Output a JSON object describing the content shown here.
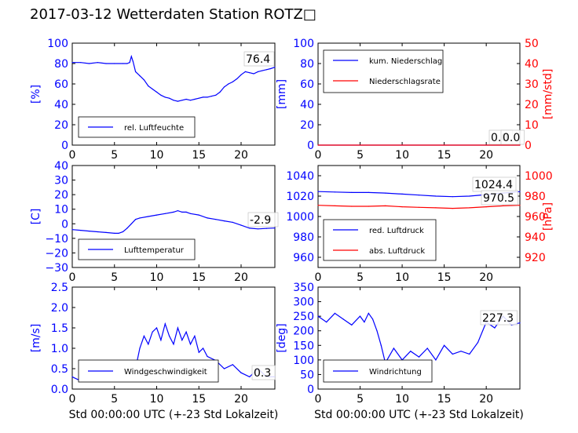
{
  "title": "2017-03-12 Wetterdaten Station ROTZ□",
  "xlabel": "Std 00:00:00 UTC (+-23 Std Lokalzeit)",
  "colors": {
    "blue": "#0000ff",
    "red": "#ff0000",
    "black": "#000000",
    "light_blue": "#8080ff"
  },
  "chart_data": [
    {
      "type": "line",
      "id": "humidity",
      "ylabel": "[%]",
      "xlim": [
        0,
        24
      ],
      "ylim": [
        0,
        100
      ],
      "xticks": [
        "0",
        "5",
        "10",
        "15",
        "20"
      ],
      "yticks": [
        "0",
        "20",
        "40",
        "60",
        "80",
        "100"
      ],
      "legend": [
        "rel. Luftfeuchte"
      ],
      "legend_position": "lower-left",
      "last_value_label": "76.4",
      "series": [
        {
          "name": "rel. Luftfeuchte",
          "color": "#0000ff",
          "x": [
            0,
            1,
            2,
            3,
            4,
            5,
            6,
            6.5,
            6.8,
            7,
            7.2,
            7.5,
            8,
            8.5,
            9,
            9.5,
            10,
            10.5,
            11,
            11.5,
            12,
            12.5,
            13,
            13.5,
            14,
            14.5,
            15,
            15.5,
            16,
            16.5,
            17,
            17.5,
            18,
            18.5,
            19,
            19.5,
            20,
            20.5,
            21,
            21.5,
            22,
            22.5,
            23,
            23.5,
            24
          ],
          "y": [
            81,
            81,
            80,
            81,
            80,
            80,
            80,
            80,
            81,
            87,
            82,
            72,
            68,
            64,
            58,
            55,
            52,
            49,
            47,
            46,
            44,
            43,
            44,
            45,
            44,
            45,
            46,
            47,
            47,
            48,
            49,
            52,
            57,
            60,
            62,
            65,
            69,
            72,
            71,
            70,
            72,
            73,
            74,
            75,
            76.4
          ]
        }
      ]
    },
    {
      "type": "line",
      "id": "precipitation",
      "ylabel": "[mm]",
      "y2label": "[mm/std]",
      "xlim": [
        0,
        24
      ],
      "ylim": [
        0,
        100
      ],
      "y2lim": [
        0,
        50
      ],
      "xticks": [
        "0",
        "5",
        "10",
        "15",
        "20"
      ],
      "yticks": [
        "0",
        "20",
        "40",
        "60",
        "80",
        "100"
      ],
      "y2ticks": [
        "0",
        "10",
        "20",
        "30",
        "40",
        "50"
      ],
      "legend": [
        "kum. Niederschlag",
        "Niederschlagsrate"
      ],
      "legend_position": "upper-left",
      "last_value_label": "0.0",
      "last_value_label2": "0.0",
      "series": [
        {
          "name": "kum. Niederschlag",
          "color": "#0000ff",
          "x": [
            0,
            24
          ],
          "y": [
            0,
            0
          ]
        },
        {
          "name": "Niederschlagsrate",
          "color": "#ff0000",
          "x": [
            0,
            24
          ],
          "y": [
            0,
            0
          ]
        }
      ]
    },
    {
      "type": "line",
      "id": "temperature",
      "ylabel": "[C]",
      "xlim": [
        0,
        24
      ],
      "ylim": [
        -30,
        40
      ],
      "xticks": [
        "0",
        "5",
        "10",
        "15",
        "20"
      ],
      "yticks": [
        "−30",
        "−20",
        "−10",
        "0",
        "10",
        "20",
        "30",
        "40"
      ],
      "legend": [
        "Lufttemperatur"
      ],
      "legend_position": "lower-left",
      "last_value_label": "-2.9",
      "series": [
        {
          "name": "Lufttemperatur",
          "color": "#0000ff",
          "x": [
            0,
            1,
            2,
            3,
            4,
            5,
            5.5,
            6,
            6.5,
            7,
            7.5,
            8,
            9,
            10,
            11,
            12,
            12.5,
            13,
            13.5,
            14,
            15,
            16,
            17,
            18,
            19,
            20,
            21,
            22,
            23,
            24
          ],
          "y": [
            -4,
            -4.5,
            -5,
            -5.5,
            -6,
            -6.5,
            -6.5,
            -5.5,
            -3,
            0,
            3,
            4,
            5,
            6,
            7,
            8,
            9,
            8,
            8,
            7,
            6,
            4,
            3,
            2,
            1,
            -1,
            -3,
            -3.5,
            -3.2,
            -2.9
          ]
        }
      ]
    },
    {
      "type": "line",
      "id": "pressure",
      "y2label": "[hPa]",
      "xlim": [
        0,
        24
      ],
      "ylim": [
        950,
        1050
      ],
      "y2lim": [
        910,
        1010
      ],
      "xticks": [
        "0",
        "5",
        "10",
        "15",
        "20"
      ],
      "yticks": [
        "960",
        "980",
        "1000",
        "1020",
        "1040"
      ],
      "y2ticks": [
        "920",
        "940",
        "960",
        "980",
        "1000"
      ],
      "legend": [
        "red. Luftdruck",
        "abs. Luftdruck"
      ],
      "legend_position": "lower-left",
      "last_value_label": "1024.4",
      "last_value_label2": "970.5",
      "series": [
        {
          "name": "red. Luftdruck",
          "color": "#0000ff",
          "axis": "left",
          "x": [
            0,
            2,
            4,
            6,
            8,
            10,
            12,
            14,
            16,
            18,
            20,
            22,
            24
          ],
          "y": [
            1024.5,
            1024,
            1023.5,
            1023.5,
            1023,
            1022,
            1021,
            1020,
            1019.5,
            1020,
            1021.5,
            1023,
            1024.4
          ]
        },
        {
          "name": "abs. Luftdruck",
          "color": "#ff0000",
          "axis": "left",
          "x": [
            0,
            2,
            4,
            6,
            8,
            10,
            12,
            14,
            16,
            18,
            20,
            22,
            24
          ],
          "y": [
            1011,
            1010.5,
            1010,
            1010,
            1010.5,
            1009.5,
            1009,
            1008.5,
            1008,
            1008.5,
            1009.5,
            1010.5,
            1011
          ]
        }
      ]
    },
    {
      "type": "line",
      "id": "windspeed",
      "ylabel": "[m/s]",
      "xlim": [
        0,
        24
      ],
      "ylim": [
        0,
        2.5
      ],
      "xticks": [
        "0",
        "5",
        "10",
        "15",
        "20"
      ],
      "yticks": [
        "0.0",
        "0.5",
        "1.0",
        "1.5",
        "2.0",
        "2.5"
      ],
      "legend": [
        "Windgeschwindigkeit"
      ],
      "legend_position": "lower-left",
      "last_value_label": "0.3",
      "series": [
        {
          "name": "Windgeschwindigkeit",
          "color": "#0000ff",
          "x": [
            0,
            1,
            2,
            3,
            4,
            5,
            6,
            7,
            7.5,
            8,
            8.5,
            9,
            9.5,
            10,
            10.5,
            11,
            11.5,
            12,
            12.5,
            13,
            13.5,
            14,
            14.5,
            15,
            15.5,
            16,
            17,
            18,
            19,
            20,
            21,
            22,
            23,
            24
          ],
          "y": [
            0.3,
            0.2,
            0.3,
            0.25,
            0.3,
            0.2,
            0.2,
            0.3,
            0.5,
            1.0,
            1.3,
            1.1,
            1.4,
            1.5,
            1.2,
            1.6,
            1.3,
            1.1,
            1.5,
            1.2,
            1.4,
            1.1,
            1.3,
            0.9,
            1.0,
            0.8,
            0.7,
            0.5,
            0.6,
            0.4,
            0.3,
            0.5,
            0.3,
            0.3
          ]
        }
      ]
    },
    {
      "type": "line",
      "id": "winddirection",
      "ylabel": "[deg]",
      "xlim": [
        0,
        24
      ],
      "ylim": [
        0,
        350
      ],
      "xticks": [
        "0",
        "5",
        "10",
        "15",
        "20"
      ],
      "yticks": [
        "0",
        "50",
        "100",
        "150",
        "200",
        "250",
        "300",
        "350"
      ],
      "legend": [
        "Windrichtung"
      ],
      "legend_position": "lower-left",
      "last_value_label": "227.3",
      "series": [
        {
          "name": "Windrichtung",
          "color": "#0000ff",
          "x": [
            0,
            1,
            2,
            3,
            4,
            5,
            5.5,
            6,
            6.5,
            7,
            7.5,
            8,
            9,
            10,
            11,
            12,
            13,
            14,
            15,
            16,
            17,
            18,
            19,
            20,
            21,
            22,
            23,
            24
          ],
          "y": [
            250,
            230,
            260,
            240,
            220,
            250,
            230,
            260,
            240,
            200,
            150,
            90,
            140,
            100,
            130,
            110,
            140,
            100,
            150,
            120,
            130,
            120,
            160,
            230,
            210,
            250,
            220,
            227.3
          ]
        }
      ]
    }
  ]
}
